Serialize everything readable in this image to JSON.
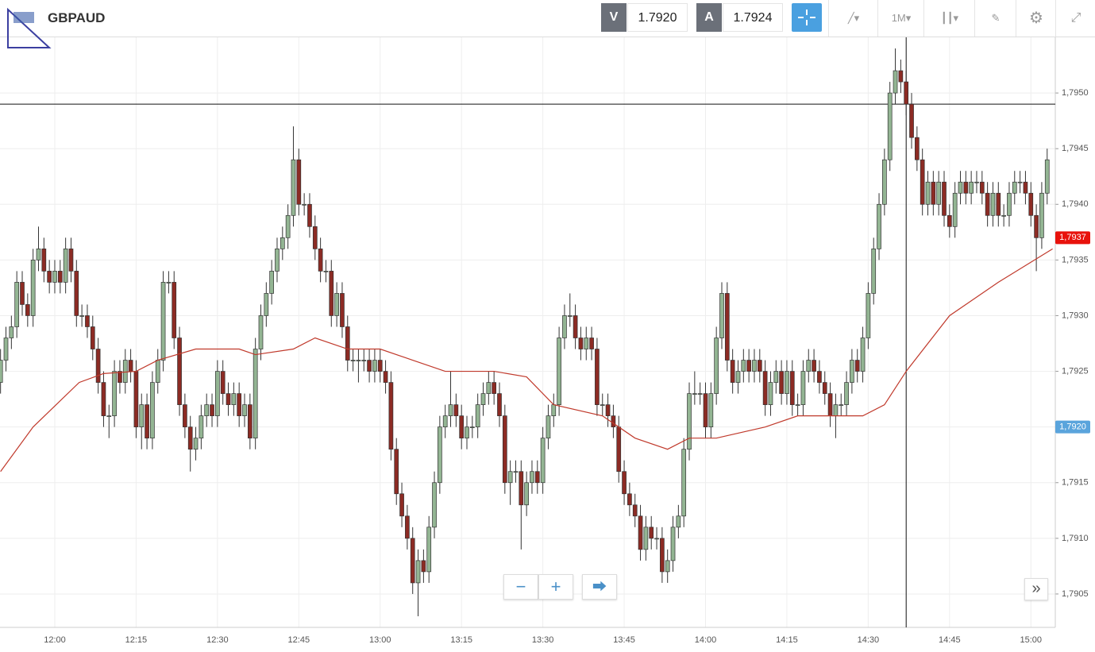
{
  "header": {
    "symbol": "GBPAUD",
    "bid_label": "V",
    "bid": "1.7920",
    "ask_label": "A",
    "ask": "1.7924",
    "timeframe": "1M"
  },
  "chart_data": {
    "type": "candlestick",
    "xlim": [
      709.9,
      904.5
    ],
    "ylim": [
      1.7902,
      1.7955
    ],
    "xticks": [
      {
        "value": 720,
        "label": "12:00"
      },
      {
        "value": 735,
        "label": "12:15"
      },
      {
        "value": 750,
        "label": "12:30"
      },
      {
        "value": 765,
        "label": "12:45"
      },
      {
        "value": 780,
        "label": "13:00"
      },
      {
        "value": 795,
        "label": "13:15"
      },
      {
        "value": 810,
        "label": "13:30"
      },
      {
        "value": 825,
        "label": "13:45"
      },
      {
        "value": 840,
        "label": "14:00"
      },
      {
        "value": 855,
        "label": "14:15"
      },
      {
        "value": 870,
        "label": "14:30"
      },
      {
        "value": 885,
        "label": "14:45"
      },
      {
        "value": 900,
        "label": "15:00"
      }
    ],
    "yticks": [
      {
        "value": 1.7905,
        "label": "1,7905"
      },
      {
        "value": 1.791,
        "label": "1,7910"
      },
      {
        "value": 1.7915,
        "label": "1,7915"
      },
      {
        "value": 1.792,
        "label": "1,7920"
      },
      {
        "value": 1.7925,
        "label": "1,7925"
      },
      {
        "value": 1.793,
        "label": "1,7930"
      },
      {
        "value": 1.7935,
        "label": "1,7935"
      },
      {
        "value": 1.794,
        "label": "1,7940"
      },
      {
        "value": 1.7945,
        "label": "1,7945"
      },
      {
        "value": 1.795,
        "label": "1,7950"
      }
    ],
    "grid": true,
    "up_color": "#93b593",
    "down_color": "#8c2b24",
    "candles": {
      "x": [
        710,
        711,
        712,
        713,
        714,
        715,
        716,
        717,
        718,
        719,
        720,
        721,
        722,
        723,
        724,
        725,
        726,
        727,
        728,
        729,
        730,
        731,
        732,
        733,
        734,
        735,
        736,
        737,
        738,
        739,
        740,
        741,
        742,
        743,
        744,
        745,
        746,
        747,
        748,
        749,
        750,
        751,
        752,
        753,
        754,
        755,
        756,
        757,
        758,
        759,
        760,
        761,
        762,
        763,
        764,
        765,
        766,
        767,
        768,
        769,
        770,
        771,
        772,
        773,
        774,
        775,
        776,
        777,
        778,
        779,
        780,
        781,
        782,
        783,
        784,
        785,
        786,
        787,
        788,
        789,
        790,
        791,
        792,
        793,
        794,
        795,
        796,
        797,
        798,
        799,
        800,
        801,
        802,
        803,
        804,
        805,
        806,
        807,
        808,
        809,
        810,
        811,
        812,
        813,
        814,
        815,
        816,
        817,
        818,
        819,
        820,
        821,
        822,
        823,
        824,
        825,
        826,
        827,
        828,
        829,
        830,
        831,
        832,
        833,
        834,
        835,
        836,
        837,
        838,
        839,
        840,
        841,
        842,
        843,
        844,
        845,
        846,
        847,
        848,
        849,
        850,
        851,
        852,
        853,
        854,
        855,
        856,
        857,
        858,
        859,
        860,
        861,
        862,
        863,
        864,
        865,
        866,
        867,
        868,
        869,
        870,
        871,
        872,
        873,
        874,
        875,
        876,
        877,
        878,
        879,
        880,
        881,
        882,
        883,
        884,
        885,
        886,
        887,
        888,
        889,
        890,
        891,
        892,
        893,
        894,
        895,
        896,
        897,
        898,
        899,
        900,
        901,
        902,
        903
      ],
      "open": [
        1.7924,
        1.7926,
        1.7928,
        1.7929,
        1.7933,
        1.7931,
        1.793,
        1.7935,
        1.7936,
        1.7934,
        1.7933,
        1.7934,
        1.7933,
        1.7936,
        1.7934,
        1.793,
        1.793,
        1.7929,
        1.7927,
        1.7924,
        1.7921,
        1.7921,
        1.7925,
        1.7924,
        1.7926,
        1.7925,
        1.792,
        1.7922,
        1.7919,
        1.7924,
        1.7926,
        1.7933,
        1.7933,
        1.7928,
        1.7922,
        1.792,
        1.7918,
        1.7919,
        1.7921,
        1.7922,
        1.7921,
        1.7925,
        1.7923,
        1.7922,
        1.7923,
        1.7921,
        1.7922,
        1.7919,
        1.7927,
        1.793,
        1.7932,
        1.7934,
        1.7936,
        1.7937,
        1.7939,
        1.7944,
        1.794,
        1.794,
        1.7938,
        1.7936,
        1.7934,
        1.7934,
        1.793,
        1.7932,
        1.7929,
        1.7926,
        1.7926,
        1.7926,
        1.7926,
        1.7925,
        1.7926,
        1.7925,
        1.7924,
        1.7918,
        1.7914,
        1.7912,
        1.791,
        1.7906,
        1.7908,
        1.7907,
        1.7911,
        1.7915,
        1.792,
        1.7921,
        1.7922,
        1.7921,
        1.7919,
        1.792,
        1.792,
        1.7922,
        1.7923,
        1.7924,
        1.7923,
        1.7921,
        1.7915,
        1.7916,
        1.7916,
        1.7913,
        1.7915,
        1.7916,
        1.7915,
        1.7919,
        1.7921,
        1.7922,
        1.7928,
        1.793,
        1.793,
        1.7928,
        1.7927,
        1.7928,
        1.7927,
        1.7922,
        1.7922,
        1.7921,
        1.792,
        1.7916,
        1.7914,
        1.7913,
        1.7912,
        1.7909,
        1.7911,
        1.791,
        1.791,
        1.7907,
        1.7908,
        1.7911,
        1.7912,
        1.7918,
        1.7923,
        1.7923,
        1.7923,
        1.792,
        1.7923,
        1.7928,
        1.7932,
        1.7926,
        1.7924,
        1.7925,
        1.7926,
        1.7925,
        1.7926,
        1.7925,
        1.7922,
        1.7924,
        1.7925,
        1.7923,
        1.7925,
        1.7922,
        1.7922,
        1.7925,
        1.7926,
        1.7925,
        1.7924,
        1.7923,
        1.7921,
        1.7922,
        1.7922,
        1.7924,
        1.7926,
        1.7925,
        1.7928,
        1.7932,
        1.7936,
        1.794,
        1.7944,
        1.795,
        1.7952,
        1.7951,
        1.7949,
        1.7946,
        1.7944,
        1.794,
        1.7942,
        1.794,
        1.7942,
        1.7939,
        1.7938,
        1.7941,
        1.7942,
        1.7941,
        1.7942,
        1.7942,
        1.7941,
        1.7939,
        1.7941,
        1.7939,
        1.7939,
        1.7941,
        1.7942,
        1.7942,
        1.7941,
        1.7939,
        1.7937,
        1.7941
      ],
      "high": [
        1.7927,
        1.7929,
        1.793,
        1.7934,
        1.7934,
        1.7932,
        1.7936,
        1.7938,
        1.7937,
        1.7935,
        1.7935,
        1.7935,
        1.7937,
        1.7937,
        1.7935,
        1.7931,
        1.7931,
        1.793,
        1.7928,
        1.7925,
        1.7922,
        1.7926,
        1.7926,
        1.7927,
        1.7927,
        1.7926,
        1.7923,
        1.7923,
        1.7925,
        1.7927,
        1.7934,
        1.7934,
        1.7934,
        1.7929,
        1.7923,
        1.7921,
        1.792,
        1.7922,
        1.7923,
        1.7923,
        1.7926,
        1.7926,
        1.7924,
        1.7924,
        1.7924,
        1.7923,
        1.7923,
        1.7928,
        1.7931,
        1.7933,
        1.7935,
        1.7937,
        1.7938,
        1.794,
        1.7947,
        1.7945,
        1.7941,
        1.7941,
        1.7939,
        1.7937,
        1.7935,
        1.7935,
        1.7933,
        1.7933,
        1.793,
        1.7927,
        1.7927,
        1.7927,
        1.7927,
        1.7927,
        1.7927,
        1.7926,
        1.7925,
        1.7919,
        1.7915,
        1.7913,
        1.7911,
        1.7909,
        1.7909,
        1.7912,
        1.7916,
        1.7921,
        1.7922,
        1.7925,
        1.7923,
        1.7922,
        1.7921,
        1.7921,
        1.7923,
        1.7924,
        1.7925,
        1.7925,
        1.7924,
        1.7922,
        1.7917,
        1.7917,
        1.7917,
        1.7916,
        1.7917,
        1.7917,
        1.792,
        1.7922,
        1.7923,
        1.7929,
        1.7931,
        1.7932,
        1.7931,
        1.7929,
        1.7929,
        1.7929,
        1.7928,
        1.7923,
        1.7923,
        1.7922,
        1.7921,
        1.7917,
        1.7915,
        1.7914,
        1.7913,
        1.7912,
        1.7912,
        1.7911,
        1.7911,
        1.7909,
        1.7912,
        1.7913,
        1.7919,
        1.7924,
        1.7925,
        1.7924,
        1.7924,
        1.7924,
        1.7929,
        1.7933,
        1.7933,
        1.7927,
        1.7926,
        1.7927,
        1.7927,
        1.7927,
        1.7927,
        1.7926,
        1.7925,
        1.7926,
        1.7926,
        1.7926,
        1.7926,
        1.7923,
        1.7926,
        1.7927,
        1.7927,
        1.7926,
        1.7925,
        1.7924,
        1.7923,
        1.7923,
        1.7925,
        1.7927,
        1.7927,
        1.7929,
        1.7933,
        1.7937,
        1.7941,
        1.7945,
        1.7951,
        1.7954,
        1.7953,
        1.7952,
        1.795,
        1.7947,
        1.7945,
        1.7943,
        1.7943,
        1.7943,
        1.7943,
        1.794,
        1.7942,
        1.7943,
        1.7943,
        1.7943,
        1.7943,
        1.7943,
        1.7942,
        1.7942,
        1.7942,
        1.794,
        1.7942,
        1.7943,
        1.7943,
        1.7943,
        1.7942,
        1.794,
        1.7942,
        1.7945
      ],
      "low": [
        1.7923,
        1.7925,
        1.7927,
        1.7928,
        1.793,
        1.7929,
        1.7929,
        1.7934,
        1.7933,
        1.7932,
        1.7932,
        1.7932,
        1.7932,
        1.7933,
        1.7929,
        1.7929,
        1.7928,
        1.7926,
        1.7923,
        1.792,
        1.7919,
        1.792,
        1.7923,
        1.7923,
        1.7924,
        1.7919,
        1.7918,
        1.7918,
        1.7918,
        1.7923,
        1.7925,
        1.7932,
        1.7927,
        1.7921,
        1.7919,
        1.7916,
        1.7917,
        1.7918,
        1.792,
        1.792,
        1.792,
        1.7922,
        1.7921,
        1.7921,
        1.792,
        1.792,
        1.7918,
        1.7918,
        1.7926,
        1.7929,
        1.7931,
        1.7933,
        1.7935,
        1.7936,
        1.7938,
        1.7939,
        1.7939,
        1.7937,
        1.7935,
        1.7933,
        1.7933,
        1.7929,
        1.7929,
        1.7928,
        1.7925,
        1.7925,
        1.7924,
        1.7925,
        1.7924,
        1.7924,
        1.7924,
        1.7923,
        1.7917,
        1.7913,
        1.7911,
        1.7909,
        1.7905,
        1.7903,
        1.7906,
        1.7906,
        1.791,
        1.7914,
        1.7919,
        1.792,
        1.792,
        1.7918,
        1.7918,
        1.7919,
        1.7919,
        1.7921,
        1.7922,
        1.7922,
        1.792,
        1.7914,
        1.7913,
        1.7915,
        1.7909,
        1.7912,
        1.7914,
        1.7914,
        1.7914,
        1.7918,
        1.792,
        1.7921,
        1.7927,
        1.7929,
        1.7927,
        1.7926,
        1.7926,
        1.7926,
        1.7921,
        1.7921,
        1.792,
        1.7919,
        1.7915,
        1.7913,
        1.7912,
        1.7911,
        1.7908,
        1.7908,
        1.7909,
        1.7909,
        1.7906,
        1.7906,
        1.7907,
        1.791,
        1.7911,
        1.7917,
        1.7922,
        1.7922,
        1.7919,
        1.7919,
        1.7922,
        1.7927,
        1.7925,
        1.7923,
        1.7923,
        1.7924,
        1.7924,
        1.7924,
        1.7924,
        1.7921,
        1.7921,
        1.7923,
        1.7922,
        1.7922,
        1.7921,
        1.7921,
        1.7921,
        1.7924,
        1.7924,
        1.7923,
        1.7922,
        1.792,
        1.7919,
        1.7921,
        1.7921,
        1.7923,
        1.7924,
        1.7924,
        1.7927,
        1.7931,
        1.7935,
        1.7939,
        1.7943,
        1.7949,
        1.795,
        1.7948,
        1.7945,
        1.7943,
        1.7939,
        1.7939,
        1.7939,
        1.7939,
        1.7938,
        1.7937,
        1.7937,
        1.794,
        1.794,
        1.794,
        1.7941,
        1.794,
        1.7938,
        1.7938,
        1.7938,
        1.7938,
        1.7938,
        1.794,
        1.7941,
        1.794,
        1.7938,
        1.7934,
        1.7936,
        1.794
      ],
      "close": [
        1.7926,
        1.7928,
        1.7929,
        1.7933,
        1.7931,
        1.793,
        1.7935,
        1.7936,
        1.7934,
        1.7933,
        1.7934,
        1.7933,
        1.7936,
        1.7934,
        1.793,
        1.793,
        1.7929,
        1.7927,
        1.7924,
        1.7921,
        1.7921,
        1.7925,
        1.7924,
        1.7926,
        1.7925,
        1.792,
        1.7922,
        1.7919,
        1.7924,
        1.7926,
        1.7933,
        1.7933,
        1.7928,
        1.7922,
        1.792,
        1.7918,
        1.7919,
        1.7921,
        1.7922,
        1.7921,
        1.7925,
        1.7923,
        1.7922,
        1.7923,
        1.7921,
        1.7922,
        1.7919,
        1.7927,
        1.793,
        1.7932,
        1.7934,
        1.7936,
        1.7937,
        1.7939,
        1.7944,
        1.794,
        1.794,
        1.7938,
        1.7936,
        1.7934,
        1.7934,
        1.793,
        1.7932,
        1.7929,
        1.7926,
        1.7926,
        1.7926,
        1.7926,
        1.7925,
        1.7926,
        1.7925,
        1.7924,
        1.7918,
        1.7914,
        1.7912,
        1.791,
        1.7906,
        1.7908,
        1.7907,
        1.7911,
        1.7915,
        1.792,
        1.7921,
        1.7922,
        1.7921,
        1.7919,
        1.792,
        1.792,
        1.7922,
        1.7923,
        1.7924,
        1.7923,
        1.7921,
        1.7915,
        1.7916,
        1.7916,
        1.7913,
        1.7915,
        1.7916,
        1.7915,
        1.7919,
        1.7921,
        1.7922,
        1.7928,
        1.793,
        1.793,
        1.7928,
        1.7927,
        1.7928,
        1.7927,
        1.7922,
        1.7922,
        1.7921,
        1.792,
        1.7916,
        1.7914,
        1.7913,
        1.7912,
        1.7909,
        1.7911,
        1.791,
        1.791,
        1.7907,
        1.7908,
        1.7911,
        1.7912,
        1.7918,
        1.7923,
        1.7923,
        1.7923,
        1.792,
        1.7923,
        1.7928,
        1.7932,
        1.7926,
        1.7924,
        1.7925,
        1.7926,
        1.7925,
        1.7926,
        1.7925,
        1.7922,
        1.7924,
        1.7925,
        1.7923,
        1.7925,
        1.7922,
        1.7922,
        1.7925,
        1.7926,
        1.7925,
        1.7924,
        1.7923,
        1.7921,
        1.7922,
        1.7922,
        1.7924,
        1.7926,
        1.7925,
        1.7928,
        1.7932,
        1.7936,
        1.794,
        1.7944,
        1.795,
        1.7952,
        1.7951,
        1.7949,
        1.7946,
        1.7944,
        1.794,
        1.7942,
        1.794,
        1.7942,
        1.7939,
        1.7938,
        1.7941,
        1.7942,
        1.7941,
        1.7942,
        1.7942,
        1.7941,
        1.7939,
        1.7941,
        1.7939,
        1.7939,
        1.7941,
        1.7942,
        1.7942,
        1.7941,
        1.7939,
        1.7937,
        1.7941,
        1.7944
      ]
    },
    "ma": {
      "color": "#c0392b",
      "x": [
        710,
        716,
        724.5,
        729,
        735,
        739,
        746,
        754,
        757,
        764,
        768,
        774,
        780,
        786,
        792,
        801,
        807,
        812,
        821,
        827,
        833,
        837,
        842,
        851,
        857,
        861,
        869,
        873,
        877,
        885,
        894,
        904
      ],
      "values": [
        1.7916,
        1.792,
        1.7924,
        1.79248,
        1.7925,
        1.7926,
        1.7927,
        1.7927,
        1.79265,
        1.7927,
        1.7928,
        1.7927,
        1.7927,
        1.7926,
        1.7925,
        1.7925,
        1.79245,
        1.7922,
        1.7921,
        1.7919,
        1.7918,
        1.7919,
        1.7919,
        1.792,
        1.7921,
        1.7921,
        1.7921,
        1.7922,
        1.7925,
        1.793,
        1.7933,
        1.7936
      ]
    },
    "price_tags": [
      {
        "value": 1.7937,
        "label": "1,7937",
        "color": "#e8120c"
      },
      {
        "value": 1.792,
        "label": "1,7920",
        "color": "#5aa4dc"
      }
    ],
    "crosshair": {
      "x": 877,
      "y": 1.7949
    }
  }
}
